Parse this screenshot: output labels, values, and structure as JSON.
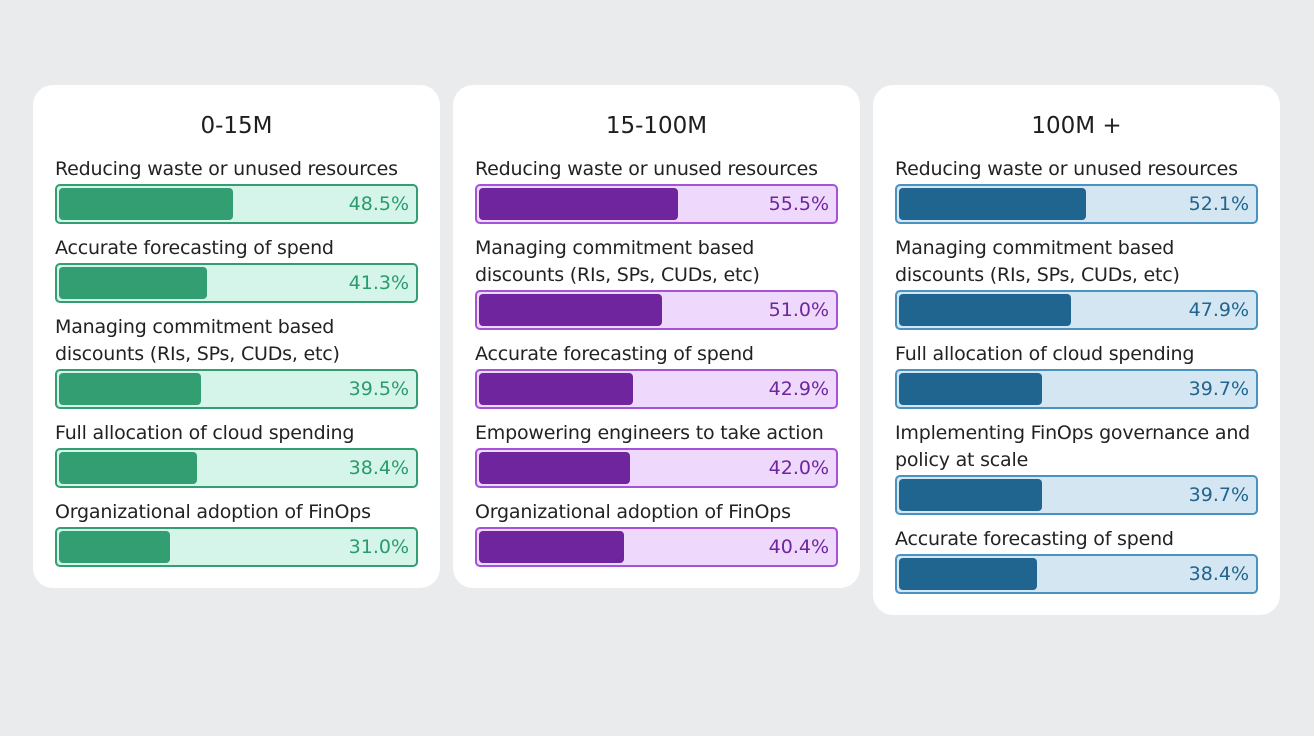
{
  "chart_data": [
    {
      "type": "bar",
      "title": "0-15M",
      "unit": "%",
      "max": 100,
      "colors": {
        "fill": "#329e72",
        "track": "#d5f5eb",
        "border": "#329e72",
        "text": "#2a9b6c"
      },
      "categories": [
        "Reducing waste or unused resources",
        "Accurate forecasting of spend",
        "Managing commitment based discounts (RIs, SPs, CUDs, etc)",
        "Full allocation of cloud spending",
        "Organizational adoption of FinOps"
      ],
      "values": [
        48.5,
        41.3,
        39.5,
        38.4,
        31.0
      ],
      "value_labels": [
        "48.5%",
        "41.3%",
        "39.5%",
        "38.4%",
        "31.0%"
      ]
    },
    {
      "type": "bar",
      "title": "15-100M",
      "unit": "%",
      "max": 100,
      "colors": {
        "fill": "#6f259e",
        "track": "#eed8fb",
        "border": "#a553d6",
        "text": "#6f259e"
      },
      "categories": [
        "Reducing waste or unused resources",
        "Managing commitment based discounts (RIs, SPs, CUDs, etc)",
        "Accurate forecasting of spend",
        "Empowering engineers to take action",
        "Organizational adoption of FinOps"
      ],
      "values": [
        55.5,
        51.0,
        42.9,
        42.0,
        40.4
      ],
      "value_labels": [
        "55.5%",
        "51.0%",
        "42.9%",
        "42.0%",
        "40.4%"
      ]
    },
    {
      "type": "bar",
      "title": "100M +",
      "unit": "%",
      "max": 100,
      "colors": {
        "fill": "#20658f",
        "track": "#d4e6f2",
        "border": "#4a93c0",
        "text": "#20658f"
      },
      "categories": [
        "Reducing waste or unused resources",
        "Managing commitment based discounts (RIs, SPs, CUDs, etc)",
        "Full allocation of cloud spending",
        "Implementing FinOps governance and policy at scale",
        "Accurate forecasting of spend"
      ],
      "values": [
        52.1,
        47.9,
        39.7,
        39.7,
        38.4
      ],
      "value_labels": [
        "52.1%",
        "47.9%",
        "39.7%",
        "39.7%",
        "38.4%"
      ]
    }
  ]
}
